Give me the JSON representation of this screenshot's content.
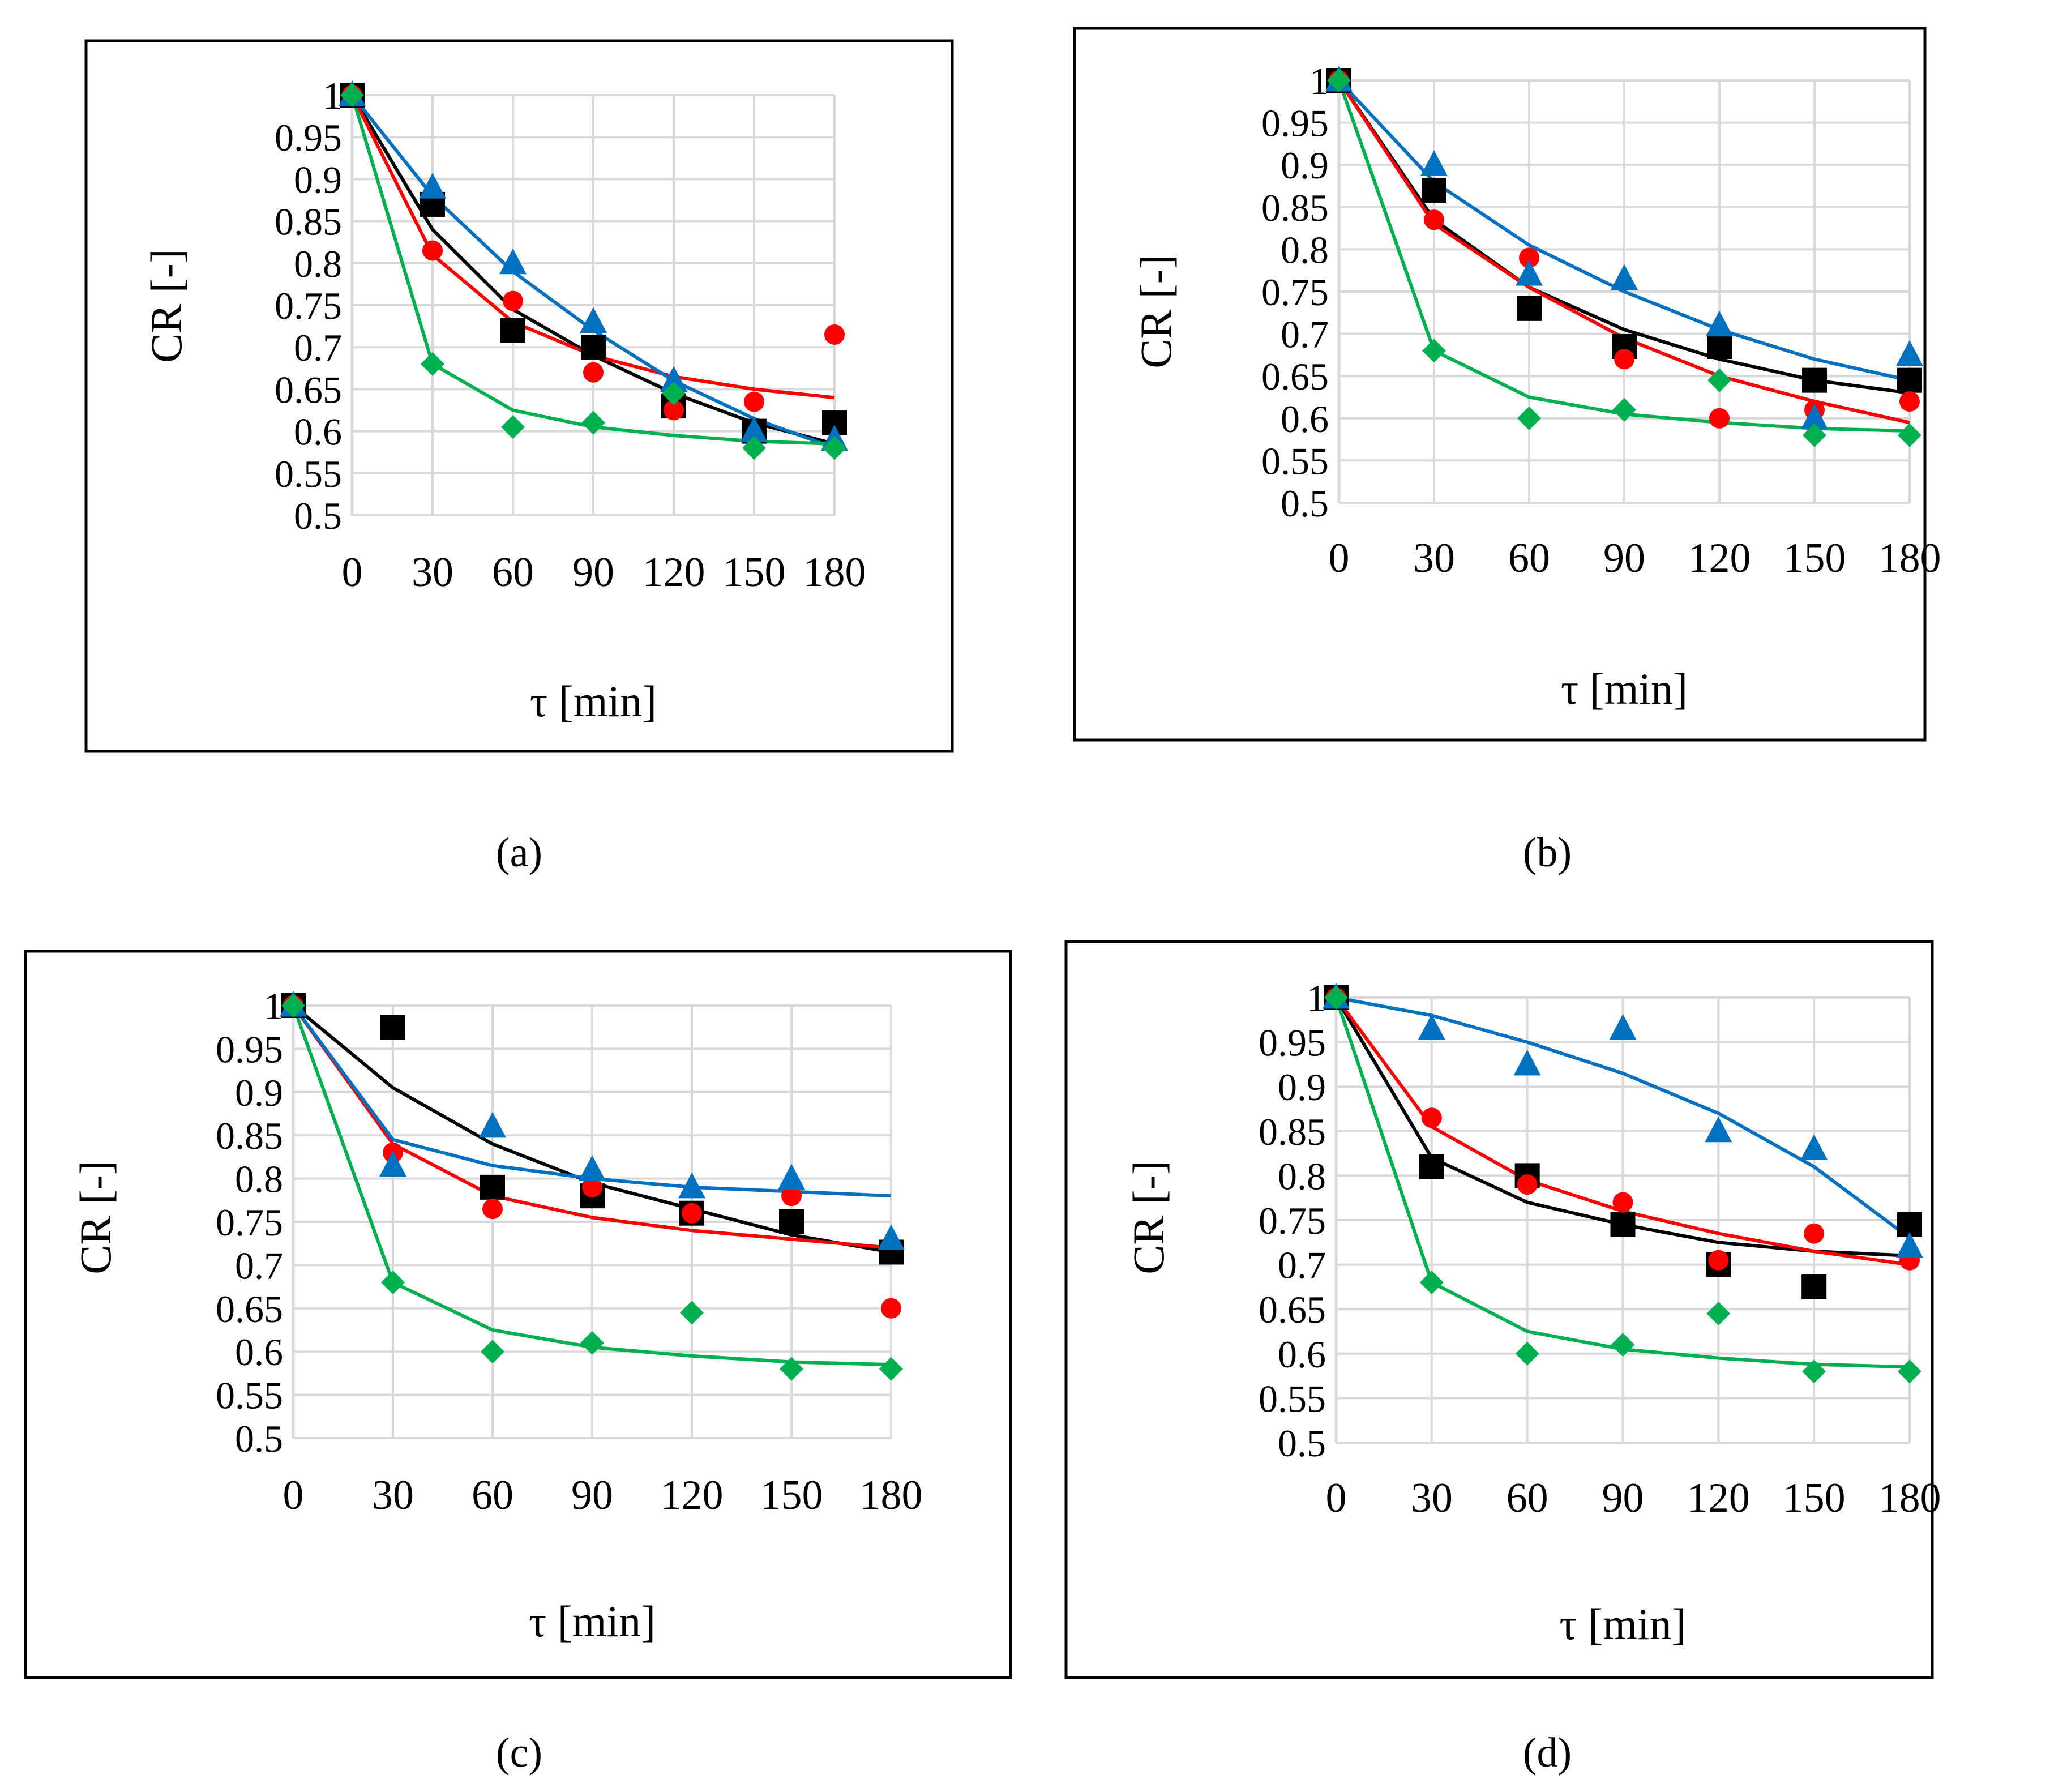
{
  "colors": {
    "black": "#000000",
    "red": "#ff0000",
    "blue": "#0070c0",
    "green": "#00b050",
    "grid": "#d9d9d9"
  },
  "chart_data": [
    {
      "type": "scatter",
      "title": "",
      "panel_label": "(a)",
      "xlabel": "τ [min]",
      "ylabel": "CR [-]",
      "x_ticks": [
        "0",
        "30",
        "60",
        "90",
        "120",
        "150",
        "180"
      ],
      "y_ticks": [
        "0.5",
        "0.55",
        "0.6",
        "0.65",
        "0.7",
        "0.75",
        "0.8",
        "0.85",
        "0.9",
        "0.95",
        "1"
      ],
      "x": [
        0,
        30,
        60,
        90,
        120,
        150,
        180
      ],
      "ylim": [
        0.5,
        1
      ],
      "grid": true,
      "series": [
        {
          "name": "black",
          "marker": "square",
          "points": [
            1,
            0.87,
            0.72,
            0.7,
            0.63,
            0.6,
            0.61
          ],
          "fit": [
            1,
            0.84,
            0.745,
            0.69,
            0.645,
            0.61,
            0.585
          ]
        },
        {
          "name": "red",
          "marker": "circle",
          "points": [
            1,
            0.815,
            0.755,
            0.67,
            0.625,
            0.635,
            0.715
          ],
          "fit": [
            1,
            0.81,
            0.73,
            0.69,
            0.665,
            0.65,
            0.64
          ]
        },
        {
          "name": "blue",
          "marker": "triangle",
          "points": [
            1,
            0.89,
            0.8,
            0.73,
            0.66,
            0.6,
            0.59
          ],
          "fit": [
            1,
            0.88,
            0.79,
            0.72,
            0.66,
            0.615,
            0.58
          ]
        },
        {
          "name": "green",
          "marker": "diamond",
          "points": [
            1,
            0.68,
            0.605,
            0.61,
            0.645,
            0.58,
            0.58
          ],
          "fit": [
            1,
            0.68,
            0.625,
            0.605,
            0.595,
            0.588,
            0.585
          ]
        }
      ]
    },
    {
      "type": "scatter",
      "title": "",
      "panel_label": "(b)",
      "xlabel": "τ [min]",
      "ylabel": "CR [-]",
      "x_ticks": [
        "0",
        "30",
        "60",
        "90",
        "120",
        "150",
        "180"
      ],
      "y_ticks": [
        "0.5",
        "0.55",
        "0.6",
        "0.65",
        "0.7",
        "0.75",
        "0.8",
        "0.85",
        "0.9",
        "0.95",
        "1"
      ],
      "x": [
        0,
        30,
        60,
        90,
        120,
        150,
        180
      ],
      "ylim": [
        0.5,
        1
      ],
      "grid": true,
      "series": [
        {
          "name": "black",
          "marker": "square",
          "points": [
            1,
            0.87,
            0.73,
            0.685,
            0.685,
            0.645,
            0.645
          ],
          "fit": [
            1,
            0.835,
            0.755,
            0.705,
            0.67,
            0.645,
            0.63
          ]
        },
        {
          "name": "red",
          "marker": "circle",
          "points": [
            1,
            0.835,
            0.79,
            0.67,
            0.6,
            0.61,
            0.62
          ],
          "fit": [
            1,
            0.83,
            0.755,
            0.695,
            0.65,
            0.62,
            0.595
          ]
        },
        {
          "name": "blue",
          "marker": "triangle",
          "points": [
            1,
            0.9,
            0.77,
            0.765,
            0.71,
            0.6,
            0.675
          ],
          "fit": [
            1,
            0.88,
            0.805,
            0.75,
            0.705,
            0.67,
            0.645
          ]
        },
        {
          "name": "green",
          "marker": "diamond",
          "points": [
            1,
            0.68,
            0.6,
            0.61,
            0.645,
            0.58,
            0.58
          ],
          "fit": [
            1,
            0.68,
            0.625,
            0.605,
            0.595,
            0.588,
            0.585
          ]
        }
      ]
    },
    {
      "type": "scatter",
      "title": "",
      "panel_label": "(c)",
      "xlabel": "τ [min]",
      "ylabel": "CR [-]",
      "x_ticks": [
        "0",
        "30",
        "60",
        "90",
        "120",
        "150",
        "180"
      ],
      "y_ticks": [
        "0.5",
        "0.55",
        "0.6",
        "0.65",
        "0.7",
        "0.75",
        "0.8",
        "0.85",
        "0.9",
        "0.95",
        "1"
      ],
      "x": [
        0,
        30,
        60,
        90,
        120,
        150,
        180
      ],
      "ylim": [
        0.5,
        1
      ],
      "grid": true,
      "series": [
        {
          "name": "black",
          "marker": "square",
          "points": [
            1,
            0.975,
            0.79,
            0.78,
            0.76,
            0.75,
            0.715
          ],
          "fit": [
            1,
            0.905,
            0.84,
            0.795,
            0.765,
            0.735,
            0.715
          ]
        },
        {
          "name": "red",
          "marker": "circle",
          "points": [
            1,
            0.83,
            0.765,
            0.79,
            0.76,
            0.78,
            0.65
          ],
          "fit": [
            1,
            0.84,
            0.78,
            0.755,
            0.74,
            0.73,
            0.72
          ]
        },
        {
          "name": "blue",
          "marker": "triangle",
          "points": [
            1,
            0.815,
            0.86,
            0.81,
            0.79,
            0.8,
            0.73
          ],
          "fit": [
            1,
            0.845,
            0.815,
            0.8,
            0.79,
            0.785,
            0.78
          ]
        },
        {
          "name": "green",
          "marker": "diamond",
          "points": [
            1,
            0.68,
            0.6,
            0.61,
            0.645,
            0.58,
            0.58
          ],
          "fit": [
            1,
            0.68,
            0.625,
            0.605,
            0.595,
            0.588,
            0.585
          ]
        }
      ]
    },
    {
      "type": "scatter",
      "title": "",
      "panel_label": "(d)",
      "xlabel": "τ [min]",
      "ylabel": "CR [-]",
      "x_ticks": [
        "0",
        "30",
        "60",
        "90",
        "120",
        "150",
        "180"
      ],
      "y_ticks": [
        "0.5",
        "0.55",
        "0.6",
        "0.65",
        "0.7",
        "0.75",
        "0.8",
        "0.85",
        "0.9",
        "0.95",
        "1"
      ],
      "x": [
        0,
        30,
        60,
        90,
        120,
        150,
        180
      ],
      "ylim": [
        0.5,
        1
      ],
      "grid": true,
      "series": [
        {
          "name": "black",
          "marker": "square",
          "points": [
            1,
            0.81,
            0.8,
            0.745,
            0.7,
            0.675,
            0.745
          ],
          "fit": [
            1,
            0.82,
            0.77,
            0.745,
            0.725,
            0.715,
            0.71
          ]
        },
        {
          "name": "red",
          "marker": "circle",
          "points": [
            1,
            0.865,
            0.79,
            0.77,
            0.705,
            0.735,
            0.705
          ],
          "fit": [
            1,
            0.855,
            0.795,
            0.76,
            0.735,
            0.715,
            0.7
          ]
        },
        {
          "name": "blue",
          "marker": "triangle",
          "points": [
            1,
            0.965,
            0.925,
            0.965,
            0.85,
            0.83,
            0.72
          ],
          "fit": [
            1,
            0.98,
            0.95,
            0.915,
            0.87,
            0.81,
            0.73
          ]
        },
        {
          "name": "green",
          "marker": "diamond",
          "points": [
            1,
            0.68,
            0.6,
            0.61,
            0.645,
            0.58,
            0.58
          ],
          "fit": [
            1,
            0.68,
            0.625,
            0.605,
            0.595,
            0.588,
            0.585
          ]
        }
      ]
    }
  ]
}
